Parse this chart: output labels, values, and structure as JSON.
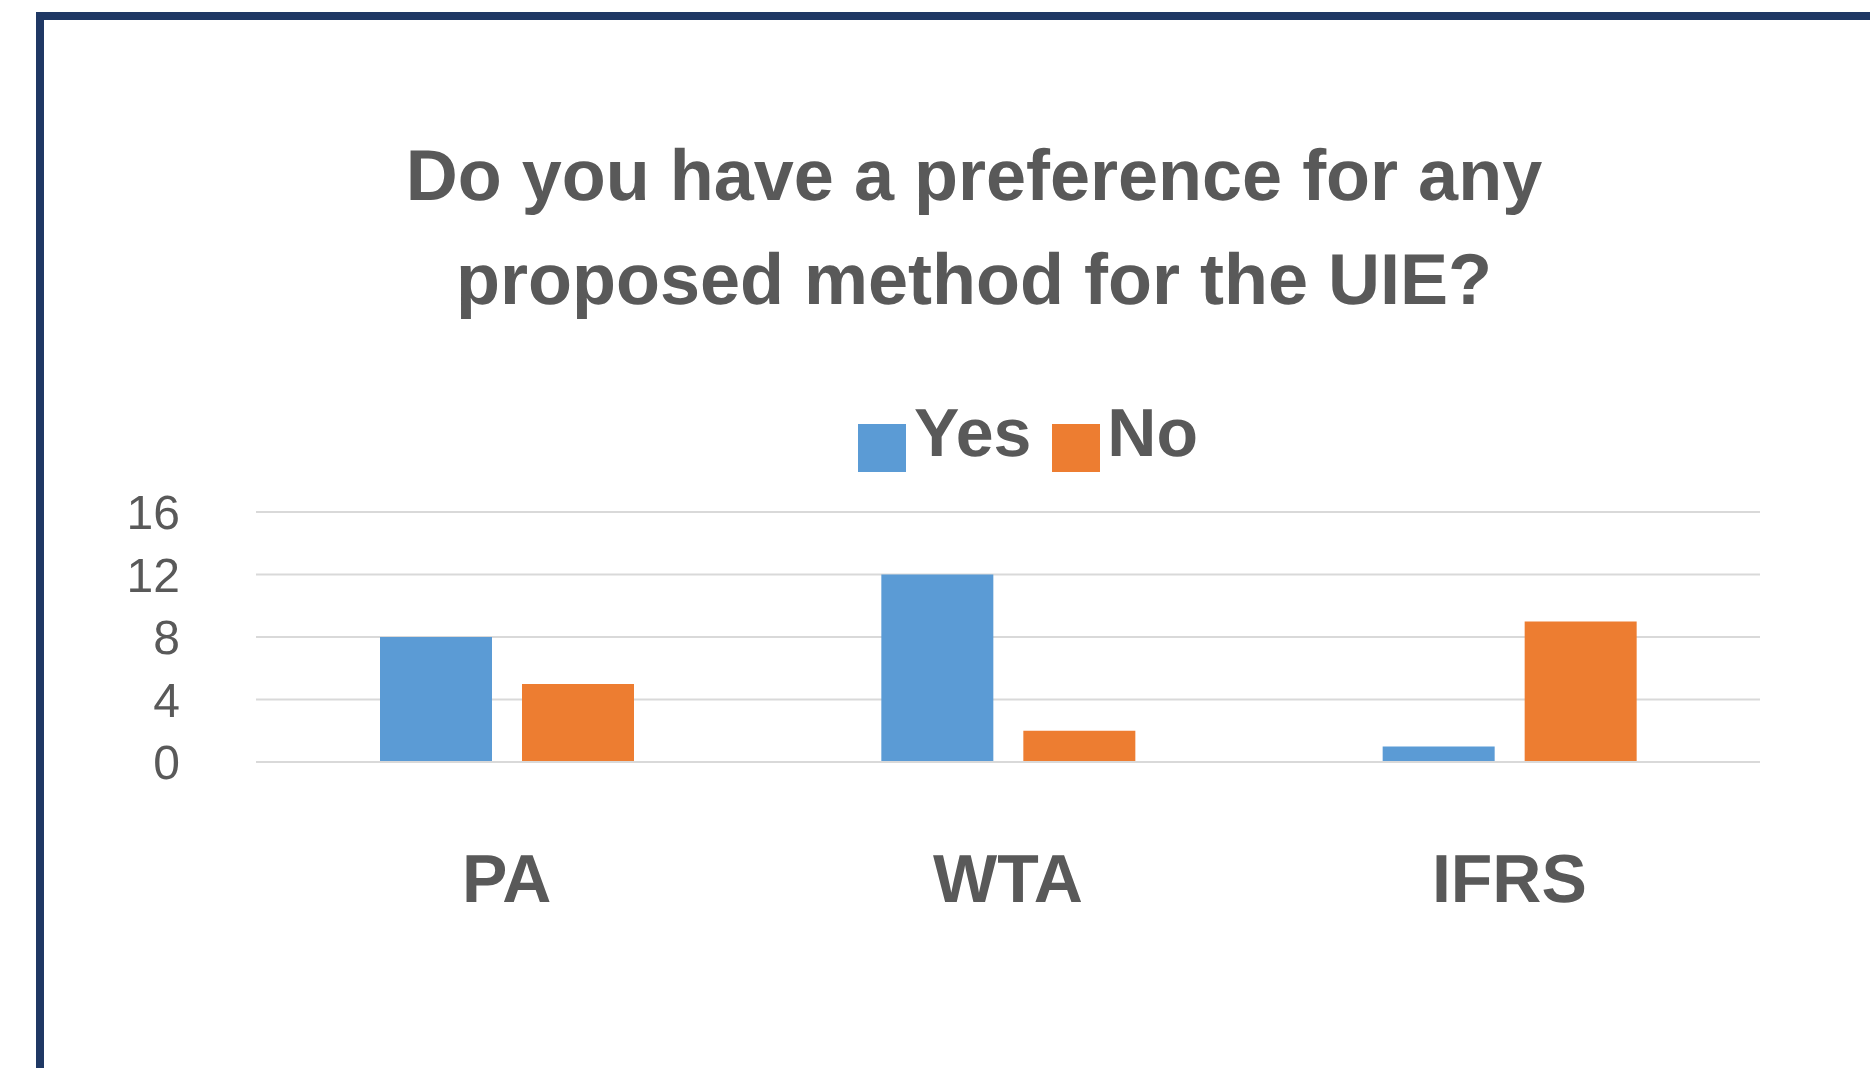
{
  "chart_data": {
    "type": "bar",
    "title": "Do you have a preference for any proposed method for the UIE?",
    "categories": [
      "PA",
      "WTA",
      "IFRS"
    ],
    "series": [
      {
        "name": "Yes",
        "color": "#5b9bd5",
        "values": [
          8,
          12,
          1
        ]
      },
      {
        "name": "No",
        "color": "#ed7d31",
        "values": [
          5,
          2,
          9
        ]
      }
    ],
    "ylim": [
      0,
      16
    ],
    "yticks": [
      0,
      4,
      8,
      12,
      16
    ],
    "grid": "y",
    "legend": "top"
  }
}
